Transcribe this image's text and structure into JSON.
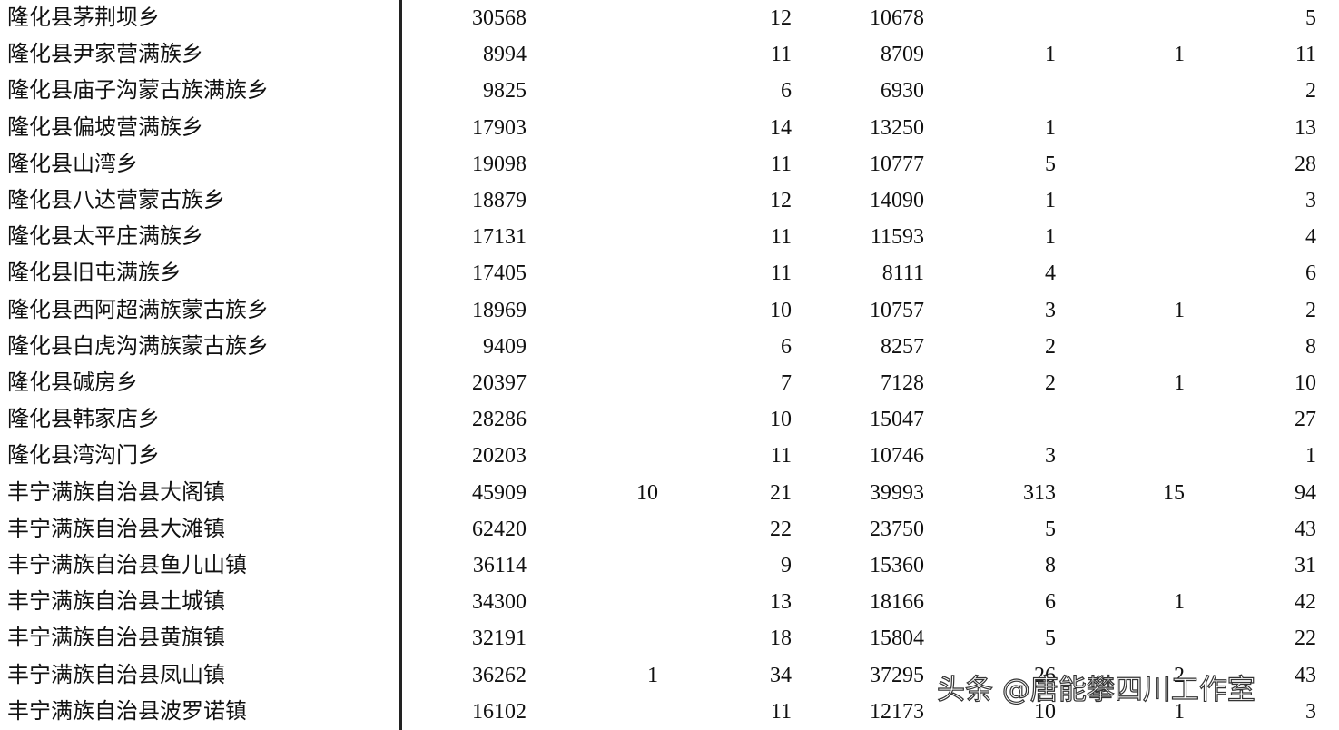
{
  "table": {
    "rows": [
      {
        "name": "隆化县茅荆坝乡",
        "values": [
          30568,
          null,
          12,
          10678,
          null,
          null,
          5
        ]
      },
      {
        "name": "隆化县尹家营满族乡",
        "values": [
          8994,
          null,
          11,
          8709,
          1,
          1,
          11
        ]
      },
      {
        "name": "隆化县庙子沟蒙古族满族乡",
        "values": [
          9825,
          null,
          6,
          6930,
          null,
          null,
          2
        ]
      },
      {
        "name": "隆化县偏坡营满族乡",
        "values": [
          17903,
          null,
          14,
          13250,
          1,
          null,
          13
        ]
      },
      {
        "name": "隆化县山湾乡",
        "values": [
          19098,
          null,
          11,
          10777,
          5,
          null,
          28
        ]
      },
      {
        "name": "隆化县八达营蒙古族乡",
        "values": [
          18879,
          null,
          12,
          14090,
          1,
          null,
          3
        ]
      },
      {
        "name": "隆化县太平庄满族乡",
        "values": [
          17131,
          null,
          11,
          11593,
          1,
          null,
          4
        ]
      },
      {
        "name": "隆化县旧屯满族乡",
        "values": [
          17405,
          null,
          11,
          8111,
          4,
          null,
          6
        ]
      },
      {
        "name": "隆化县西阿超满族蒙古族乡",
        "values": [
          18969,
          null,
          10,
          10757,
          3,
          1,
          2
        ]
      },
      {
        "name": "隆化县白虎沟满族蒙古族乡",
        "values": [
          9409,
          null,
          6,
          8257,
          2,
          null,
          8
        ]
      },
      {
        "name": "隆化县碱房乡",
        "values": [
          20397,
          null,
          7,
          7128,
          2,
          1,
          10
        ]
      },
      {
        "name": "隆化县韩家店乡",
        "values": [
          28286,
          null,
          10,
          15047,
          null,
          null,
          27
        ]
      },
      {
        "name": "隆化县湾沟门乡",
        "values": [
          20203,
          null,
          11,
          10746,
          3,
          null,
          1
        ]
      },
      {
        "name": "丰宁满族自治县大阁镇",
        "values": [
          45909,
          10,
          21,
          39993,
          313,
          15,
          94
        ]
      },
      {
        "name": "丰宁满族自治县大滩镇",
        "values": [
          62420,
          null,
          22,
          23750,
          5,
          null,
          43
        ]
      },
      {
        "name": "丰宁满族自治县鱼儿山镇",
        "values": [
          36114,
          null,
          9,
          15360,
          8,
          null,
          31
        ]
      },
      {
        "name": "丰宁满族自治县土城镇",
        "values": [
          34300,
          null,
          13,
          18166,
          6,
          1,
          42
        ]
      },
      {
        "name": "丰宁满族自治县黄旗镇",
        "values": [
          32191,
          null,
          18,
          15804,
          5,
          null,
          22
        ]
      },
      {
        "name": "丰宁满族自治县凤山镇",
        "values": [
          36262,
          1,
          34,
          37295,
          26,
          2,
          43
        ]
      },
      {
        "name": "丰宁满族自治县波罗诺镇",
        "values": [
          16102,
          null,
          11,
          12173,
          10,
          1,
          3
        ]
      }
    ]
  },
  "watermark": "头条 @唐能攀四川工作室"
}
